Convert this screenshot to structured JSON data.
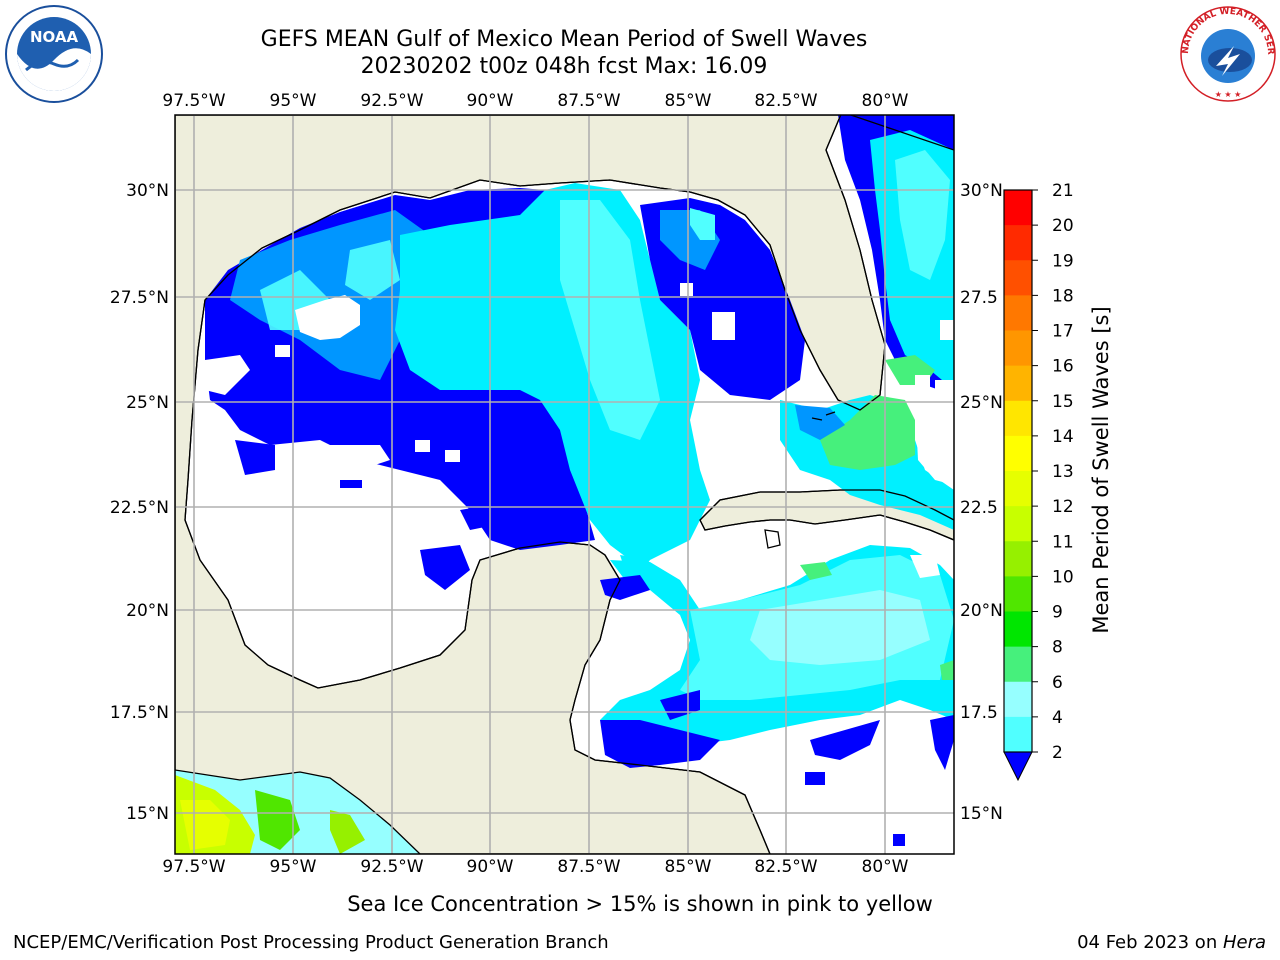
{
  "title": {
    "line1": "GEFS MEAN Gulf of Mexico Mean Period of Swell Waves",
    "line2": "20230202 t00z 048h fcst   Max: 16.09"
  },
  "map": {
    "lon_labels": [
      "97.5°W",
      "95°W",
      "92.5°W",
      "90°W",
      "87.5°W",
      "85°W",
      "82.5°W",
      "80°W"
    ],
    "lat_labels_left": [
      "30°N",
      "27.5°N",
      "25°N",
      "22.5°N",
      "20°N",
      "17.5°N",
      "15°N"
    ],
    "lat_labels_right": [
      "30°N",
      "27.5",
      "25°N",
      "22.5",
      "20°N",
      "17.5",
      "15°N"
    ],
    "colors": {
      "land": "#eeeedc",
      "grid": "#b0b0b0",
      "coast": "#000000"
    }
  },
  "colorbar": {
    "label": "Mean Period of Swell Waves [s]",
    "ticks": [
      "21",
      "20",
      "19",
      "18",
      "17",
      "16",
      "15",
      "14",
      "13",
      "12",
      "11",
      "10",
      "9",
      "8",
      "6",
      "4",
      "2"
    ],
    "colors": [
      "#ff0000",
      "#ff2a00",
      "#ff5000",
      "#ff7800",
      "#ff9600",
      "#ffb400",
      "#ffe600",
      "#ffff00",
      "#e6ff00",
      "#c8ff00",
      "#96f000",
      "#50e600",
      "#00e600",
      "#46f07c",
      "#96ffff",
      "#50ffff",
      "#00f0ff",
      "#0096ff",
      "#0000ff"
    ]
  },
  "footer": {
    "note": "Sea Ice Concentration > 15% is shown in pink to yellow",
    "credit_left": "NCEP/EMC/Verification Post Processing Product Generation Branch",
    "date_text": "04 Feb 2023 on ",
    "host": "Hera"
  },
  "logos": {
    "noaa": "NOAA",
    "nws": "NATIONAL WEATHER SERVICE"
  }
}
